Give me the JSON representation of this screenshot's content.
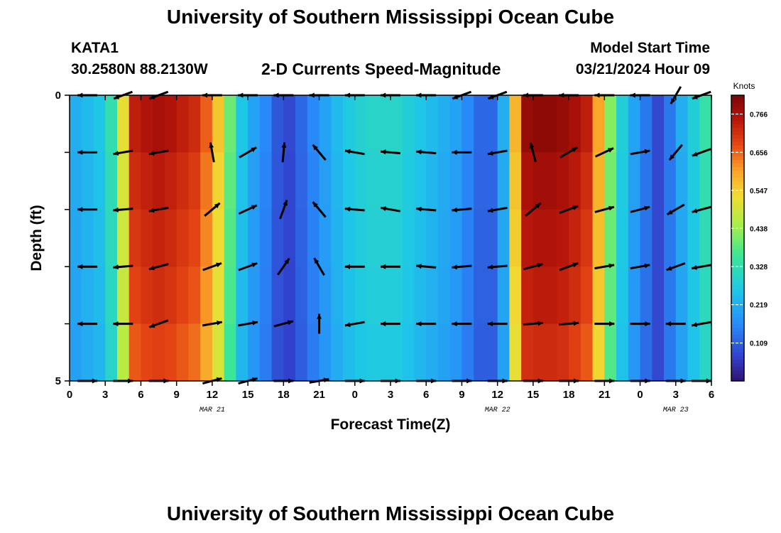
{
  "header": {
    "title": "University of Southern Mississippi Ocean Cube",
    "station_id": "KATA1",
    "coordinates": "30.2580N  88.2130W",
    "subtitle": "2-D Currents Speed-Magnitude",
    "model_start_label": "Model Start Time",
    "model_start_value": "03/21/2024 Hour 09"
  },
  "footer": {
    "title": "University of Southern Mississippi Ocean Cube"
  },
  "chart_data": {
    "type": "heatmap",
    "title": "2-D Currents Speed-Magnitude",
    "xlabel": "Forecast Time(Z)",
    "ylabel": "Depth (ft)",
    "x_hours_start": 0,
    "x_hours_end": 54,
    "xlim": [
      0,
      54
    ],
    "ylim": [
      0,
      5
    ],
    "x_tick_labels": [
      "0",
      "3",
      "6",
      "9",
      "12",
      "15",
      "18",
      "21",
      "0",
      "3",
      "6",
      "9",
      "12",
      "15",
      "18",
      "21",
      "0",
      "3",
      "6"
    ],
    "y_tick_labels": [
      "0",
      "",
      "",
      "",
      "",
      "5"
    ],
    "date_labels": [
      {
        "text": "MAR 21",
        "hour": 12
      },
      {
        "text": "MAR 22",
        "hour": 36
      },
      {
        "text": "MAR 23",
        "hour": 51
      }
    ],
    "colorbar": {
      "label": "Knots",
      "min": 0.0,
      "max": 0.82,
      "ticks": [
        0.766,
        0.656,
        0.547,
        0.438,
        0.328,
        0.219,
        0.109
      ],
      "tick_labels": [
        "0.766",
        "0.656",
        "0.547",
        "0.438",
        "0.328",
        "0.219",
        "0.109"
      ]
    },
    "speed_profile_by_hour": [
      0.22,
      0.24,
      0.26,
      0.33,
      0.52,
      0.74,
      0.76,
      0.77,
      0.76,
      0.74,
      0.72,
      0.66,
      0.56,
      0.4,
      0.26,
      0.2,
      0.16,
      0.1,
      0.08,
      0.12,
      0.16,
      0.2,
      0.24,
      0.27,
      0.29,
      0.3,
      0.3,
      0.3,
      0.28,
      0.26,
      0.24,
      0.22,
      0.2,
      0.16,
      0.12,
      0.12,
      0.22,
      0.58,
      0.79,
      0.8,
      0.8,
      0.79,
      0.77,
      0.74,
      0.6,
      0.42,
      0.28,
      0.2,
      0.14,
      0.08,
      0.14,
      0.22,
      0.28,
      0.34,
      0.38
    ],
    "depth_levels_ft": [
      0,
      1,
      2,
      3,
      4,
      5
    ],
    "vector_hours": [
      1.5,
      4.5,
      7.5,
      12,
      15,
      18,
      21,
      24,
      27,
      30,
      33,
      36,
      39,
      42,
      45,
      48,
      51,
      54
    ],
    "vector_directions_deg": [
      [
        270,
        250,
        250,
        270,
        270,
        270,
        270,
        270,
        270,
        270,
        250,
        250,
        270,
        270,
        270,
        270,
        210,
        250
      ],
      [
        270,
        260,
        260,
        350,
        60,
        5,
        320,
        280,
        275,
        275,
        270,
        260,
        345,
        60,
        65,
        80,
        220,
        250
      ],
      [
        270,
        265,
        260,
        50,
        65,
        20,
        320,
        275,
        280,
        275,
        265,
        260,
        50,
        70,
        75,
        75,
        240,
        255
      ],
      [
        270,
        265,
        255,
        70,
        70,
        35,
        330,
        270,
        270,
        275,
        265,
        265,
        75,
        70,
        80,
        80,
        250,
        260
      ],
      [
        270,
        270,
        250,
        80,
        80,
        75,
        0,
        260,
        270,
        270,
        270,
        270,
        85,
        85,
        90,
        90,
        270,
        260
      ],
      [
        90,
        90,
        90,
        75,
        75,
        90,
        80,
        90,
        90,
        90,
        90,
        90,
        90,
        90,
        90,
        90,
        90,
        90
      ]
    ]
  }
}
